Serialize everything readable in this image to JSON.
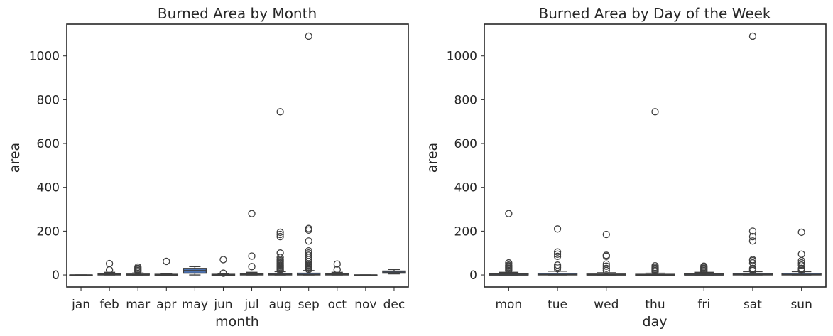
{
  "colors": {
    "box_fill": "#4c72b0",
    "line": "#3f3f3f",
    "frame": "#262626"
  },
  "chart_data": [
    {
      "type": "box",
      "title": "Burned Area by Month",
      "xlabel": "month",
      "ylabel": "area",
      "ylim": [
        -55,
        1145
      ],
      "yticks": [
        0,
        200,
        400,
        600,
        800,
        1000
      ],
      "categories": [
        "jan",
        "feb",
        "mar",
        "apr",
        "may",
        "jun",
        "jul",
        "aug",
        "sep",
        "oct",
        "nov",
        "dec"
      ],
      "boxes": [
        {
          "q1": 0,
          "median": 0,
          "q3": 0,
          "whislo": 0,
          "whishi": 0,
          "fliers": []
        },
        {
          "q1": 0,
          "median": 1,
          "q3": 5,
          "whislo": 0,
          "whishi": 12,
          "fliers": [
            23,
            52
          ]
        },
        {
          "q1": 0,
          "median": 0,
          "q3": 4,
          "whislo": 0,
          "whishi": 9,
          "fliers": [
            15,
            20,
            25,
            30,
            36
          ]
        },
        {
          "q1": 0,
          "median": 1,
          "q3": 3,
          "whislo": 0,
          "whishi": 7,
          "fliers": [
            62
          ]
        },
        {
          "q1": 8,
          "median": 20,
          "q3": 30,
          "whislo": 0,
          "whishi": 38,
          "fliers": []
        },
        {
          "q1": 0,
          "median": 0,
          "q3": 3,
          "whislo": 0,
          "whishi": 6,
          "fliers": [
            8,
            70
          ]
        },
        {
          "q1": 0,
          "median": 1,
          "q3": 5,
          "whislo": 0,
          "whishi": 12,
          "fliers": [
            38,
            86,
            280
          ]
        },
        {
          "q1": 0,
          "median": 1,
          "q3": 6,
          "whislo": 0,
          "whishi": 15,
          "fliers": [
            20,
            25,
            30,
            35,
            40,
            45,
            50,
            55,
            60,
            65,
            70,
            80,
            100,
            175,
            185,
            195,
            745
          ]
        },
        {
          "q1": 0,
          "median": 2,
          "q3": 8,
          "whislo": 0,
          "whishi": 20,
          "fliers": [
            25,
            30,
            35,
            40,
            45,
            50,
            60,
            70,
            80,
            90,
            100,
            110,
            155,
            205,
            212,
            1090
          ]
        },
        {
          "q1": 0,
          "median": 1,
          "q3": 5,
          "whislo": 0,
          "whishi": 12,
          "fliers": [
            25,
            50
          ]
        },
        {
          "q1": 0,
          "median": 0,
          "q3": 0,
          "whislo": 0,
          "whishi": 0,
          "fliers": []
        },
        {
          "q1": 8,
          "median": 13,
          "q3": 18,
          "whislo": 5,
          "whishi": 25,
          "fliers": []
        }
      ]
    },
    {
      "type": "box",
      "title": "Burned Area by Day of the Week",
      "xlabel": "day",
      "ylabel": "area",
      "ylim": [
        -55,
        1145
      ],
      "yticks": [
        0,
        200,
        400,
        600,
        800,
        1000
      ],
      "categories": [
        "mon",
        "tue",
        "wed",
        "thu",
        "fri",
        "sat",
        "sun"
      ],
      "boxes": [
        {
          "q1": 0,
          "median": 0,
          "q3": 5,
          "whislo": 0,
          "whishi": 12,
          "fliers": [
            20,
            25,
            30,
            35,
            40,
            45,
            55,
            280
          ]
        },
        {
          "q1": 0,
          "median": 1,
          "q3": 7,
          "whislo": 0,
          "whishi": 17,
          "fliers": [
            28,
            35,
            45,
            85,
            95,
            105,
            210
          ]
        },
        {
          "q1": 0,
          "median": 0,
          "q3": 4,
          "whislo": 0,
          "whishi": 10,
          "fliers": [
            20,
            30,
            40,
            50,
            85,
            90,
            185
          ]
        },
        {
          "q1": 0,
          "median": 0,
          "q3": 3,
          "whislo": 0,
          "whishi": 8,
          "fliers": [
            15,
            20,
            25,
            30,
            35,
            42,
            745
          ]
        },
        {
          "q1": 0,
          "median": 0,
          "q3": 5,
          "whislo": 0,
          "whishi": 12,
          "fliers": [
            15,
            20,
            25,
            30,
            35,
            40
          ]
        },
        {
          "q1": 0,
          "median": 1,
          "q3": 6,
          "whislo": 0,
          "whishi": 15,
          "fliers": [
            20,
            25,
            30,
            55,
            65,
            70,
            155,
            175,
            200,
            1090
          ]
        },
        {
          "q1": 0,
          "median": 1,
          "q3": 7,
          "whislo": 0,
          "whishi": 15,
          "fliers": [
            20,
            25,
            30,
            45,
            55,
            65,
            95,
            195
          ]
        }
      ]
    }
  ]
}
